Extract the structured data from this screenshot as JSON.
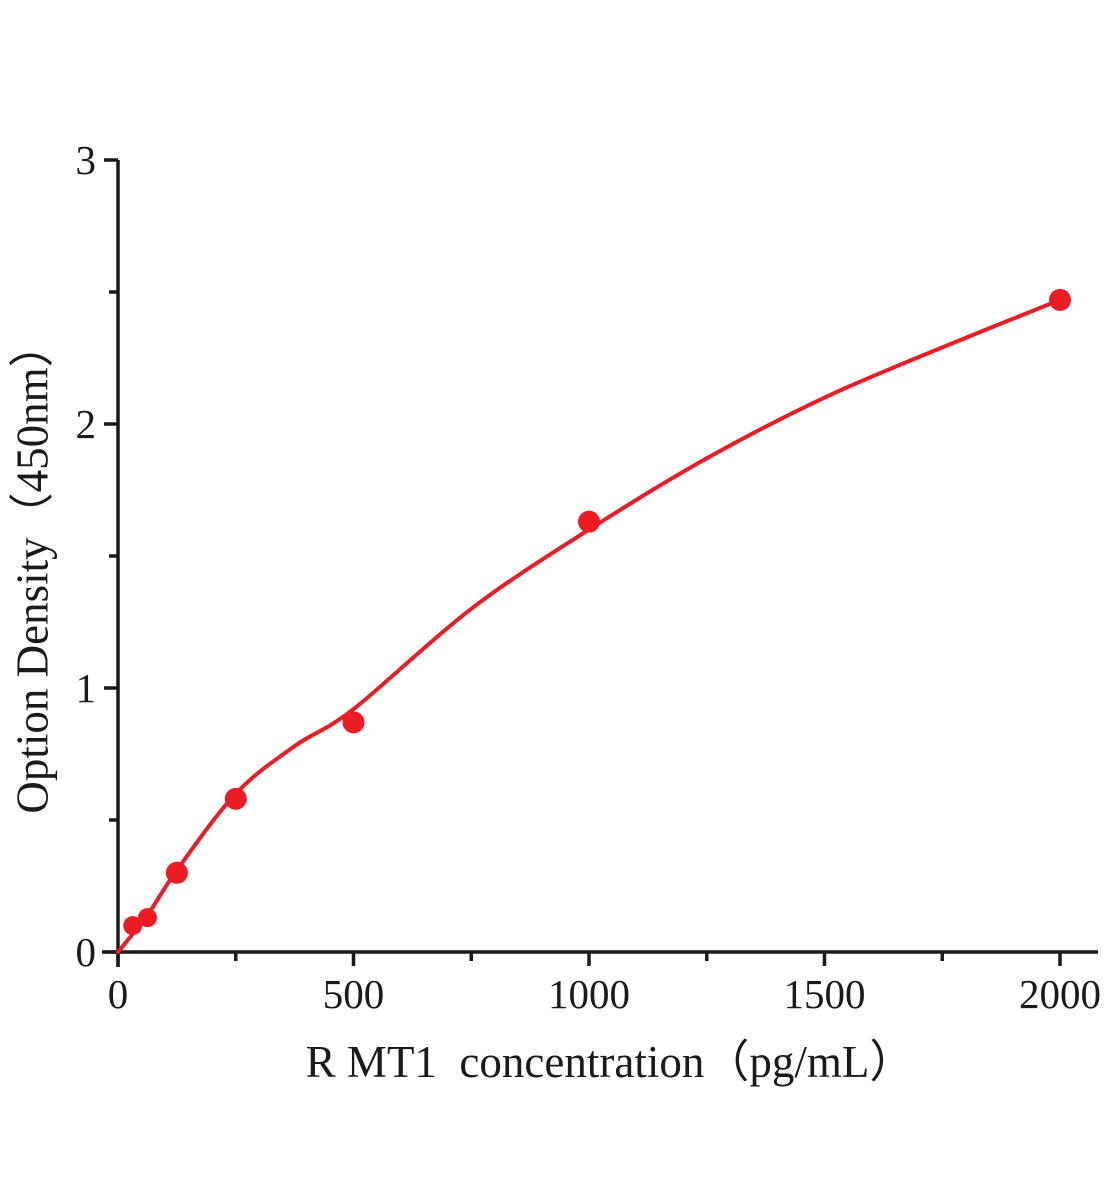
{
  "chart_data": {
    "type": "scatter",
    "title": "",
    "xlabel": "R MT1  concentration（pg/mL）",
    "ylabel": "Option Density（450nm）",
    "x_axis": {
      "major_ticks": [
        0,
        500,
        1000,
        1500,
        2000
      ],
      "minor_ticks": [
        250,
        750,
        1250,
        1750
      ],
      "tick_labels": [
        "0",
        "500",
        "1000",
        "1500",
        "2000"
      ],
      "range_shown": [
        0,
        2080
      ]
    },
    "y_axis": {
      "major_ticks": [
        0,
        1,
        2,
        3
      ],
      "minor_ticks": [
        0.5,
        1.5,
        2.5
      ],
      "tick_labels": [
        "0",
        "1",
        "2",
        "3"
      ],
      "range_shown": [
        0,
        3
      ]
    },
    "grid": false,
    "legend": "none",
    "series": [
      {
        "name": "standard_points",
        "type": "scatter",
        "x": [
          31.25,
          62.5,
          125,
          250,
          500,
          1000,
          2000
        ],
        "y": [
          0.1,
          0.13,
          0.3,
          0.58,
          0.87,
          1.63,
          2.47
        ]
      },
      {
        "name": "fit_curve",
        "type": "line",
        "x": [
          0,
          62.5,
          125,
          250,
          375,
          500,
          750,
          1000,
          1250,
          1500,
          1750,
          2000
        ],
        "y": [
          0,
          0.14,
          0.31,
          0.6,
          0.78,
          0.92,
          1.3,
          1.6,
          1.87,
          2.1,
          2.29,
          2.47
        ]
      }
    ],
    "colors": {
      "marker": "#ec1c24",
      "line": "#ec1c24",
      "axis": "#1a1a1a",
      "background": "#ffffff"
    }
  }
}
